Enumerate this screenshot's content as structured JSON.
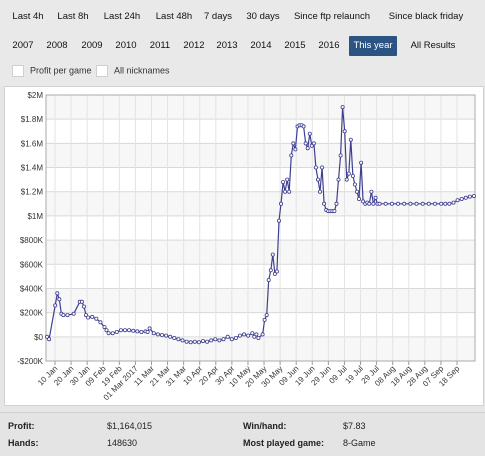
{
  "filters": {
    "row1": [
      "Last 4h",
      "Last 8h",
      "Last 24h",
      "Last 48h",
      "7 days",
      "30 days",
      "Since ftp relaunch",
      "Since black friday"
    ],
    "row2": [
      "2007",
      "2008",
      "2009",
      "2010",
      "2011",
      "2012",
      "2013",
      "2014",
      "2015",
      "2016",
      "This year",
      "All Results"
    ],
    "active": "This year"
  },
  "options": {
    "profit_per_game": "Profit per game",
    "all_nicknames": "All nicknames"
  },
  "colors": {
    "accent": "#2c5483",
    "line": "#3f3f8f"
  },
  "chart_data": {
    "type": "line",
    "title": "",
    "xlabel": "",
    "ylabel": "",
    "y_ticks": [
      "$2M",
      "$1.8M",
      "$1.6M",
      "$1.4M",
      "$1.2M",
      "$1M",
      "$800K",
      "$600K",
      "$400K",
      "$200K",
      "$0",
      "-$200K"
    ],
    "x_ticks": [
      "10 Jan",
      "20 Jan",
      "30 Jan",
      "09 Feb",
      "19 Feb",
      "01 Mar 2017",
      "11 Mar",
      "21 Mar",
      "31 Mar",
      "10 Apr",
      "20 Apr",
      "30 Apr",
      "10 May",
      "20 May",
      "30 May",
      "09 Jun",
      "19 Jun",
      "29 Jun",
      "09 Jul",
      "19 Jul",
      "29 Jul",
      "08 Aug",
      "18 Aug",
      "28 Aug",
      "07 Sep",
      "18 Sep"
    ],
    "ylim": [
      -200000,
      2000000
    ],
    "grid": true,
    "series": [
      {
        "name": "",
        "points": [
          [
            0,
            0
          ],
          [
            1,
            -20000
          ],
          [
            4,
            260000
          ],
          [
            5,
            360000
          ],
          [
            6,
            310000
          ],
          [
            7,
            190000
          ],
          [
            8,
            180000
          ],
          [
            10,
            180000
          ],
          [
            13,
            190000
          ],
          [
            16,
            290000
          ],
          [
            17,
            290000
          ],
          [
            18,
            250000
          ],
          [
            19,
            180000
          ],
          [
            20,
            160000
          ],
          [
            22,
            165000
          ],
          [
            24,
            150000
          ],
          [
            26,
            120000
          ],
          [
            28,
            80000
          ],
          [
            29,
            55000
          ],
          [
            30,
            30000
          ],
          [
            32,
            30000
          ],
          [
            34,
            40000
          ],
          [
            36,
            55000
          ],
          [
            38,
            55000
          ],
          [
            40,
            55000
          ],
          [
            42,
            50000
          ],
          [
            44,
            45000
          ],
          [
            46,
            40000
          ],
          [
            48,
            45000
          ],
          [
            49,
            40000
          ],
          [
            50,
            70000
          ],
          [
            52,
            30000
          ],
          [
            54,
            20000
          ],
          [
            56,
            15000
          ],
          [
            58,
            10000
          ],
          [
            60,
            0
          ],
          [
            62,
            -10000
          ],
          [
            64,
            -20000
          ],
          [
            66,
            -30000
          ],
          [
            68,
            -40000
          ],
          [
            70,
            -45000
          ],
          [
            72,
            -40000
          ],
          [
            74,
            -45000
          ],
          [
            76,
            -35000
          ],
          [
            78,
            -40000
          ],
          [
            80,
            -30000
          ],
          [
            82,
            -20000
          ],
          [
            84,
            -30000
          ],
          [
            86,
            -20000
          ],
          [
            88,
            0
          ],
          [
            90,
            -20000
          ],
          [
            92,
            -10000
          ],
          [
            94,
            10000
          ],
          [
            96,
            20000
          ],
          [
            98,
            10000
          ],
          [
            100,
            30000
          ],
          [
            101,
            0
          ],
          [
            102,
            20000
          ],
          [
            103,
            -10000
          ],
          [
            105,
            20000
          ],
          [
            106,
            140000
          ],
          [
            107,
            180000
          ],
          [
            108,
            470000
          ],
          [
            109,
            550000
          ],
          [
            110,
            680000
          ],
          [
            111,
            520000
          ],
          [
            112,
            540000
          ],
          [
            113,
            960000
          ],
          [
            114,
            1100000
          ],
          [
            115,
            1280000
          ],
          [
            116,
            1200000
          ],
          [
            117,
            1300000
          ],
          [
            118,
            1200000
          ],
          [
            119,
            1500000
          ],
          [
            120,
            1600000
          ],
          [
            121,
            1550000
          ],
          [
            122,
            1740000
          ],
          [
            123,
            1750000
          ],
          [
            124,
            1750000
          ],
          [
            125,
            1740000
          ],
          [
            126,
            1600000
          ],
          [
            127,
            1560000
          ],
          [
            128,
            1680000
          ],
          [
            129,
            1580000
          ],
          [
            130,
            1600000
          ],
          [
            131,
            1400000
          ],
          [
            132,
            1300000
          ],
          [
            133,
            1200000
          ],
          [
            134,
            1400000
          ],
          [
            135,
            1100000
          ],
          [
            136,
            1050000
          ],
          [
            137,
            1040000
          ],
          [
            138,
            1040000
          ],
          [
            139,
            1040000
          ],
          [
            140,
            1040000
          ],
          [
            141,
            1100000
          ],
          [
            142,
            1300000
          ],
          [
            143,
            1500000
          ],
          [
            144,
            1900000
          ],
          [
            145,
            1700000
          ],
          [
            146,
            1300000
          ],
          [
            147,
            1350000
          ],
          [
            148,
            1630000
          ],
          [
            149,
            1330000
          ],
          [
            150,
            1260000
          ],
          [
            151,
            1200000
          ],
          [
            152,
            1140000
          ],
          [
            153,
            1440000
          ],
          [
            154,
            1120000
          ],
          [
            155,
            1100000
          ],
          [
            156,
            1110000
          ],
          [
            157,
            1100000
          ],
          [
            158,
            1200000
          ],
          [
            159,
            1100000
          ],
          [
            160,
            1150000
          ],
          [
            161,
            1100000
          ],
          [
            162,
            1100000
          ],
          [
            165,
            1100000
          ],
          [
            168,
            1100000
          ],
          [
            171,
            1100000
          ],
          [
            174,
            1100000
          ],
          [
            177,
            1100000
          ],
          [
            180,
            1100000
          ],
          [
            183,
            1100000
          ],
          [
            186,
            1100000
          ],
          [
            189,
            1100000
          ],
          [
            192,
            1100000
          ],
          [
            194,
            1100000
          ],
          [
            196,
            1100000
          ],
          [
            198,
            1110000
          ],
          [
            200,
            1130000
          ],
          [
            202,
            1140000
          ],
          [
            204,
            1150000
          ],
          [
            206,
            1160000
          ],
          [
            208,
            1164015
          ]
        ]
      }
    ]
  },
  "stats": {
    "profit_label": "Profit:",
    "profit_value": "$1,164,015",
    "hands_label": "Hands:",
    "hands_value": "148630",
    "winhand_label": "Win/hand:",
    "winhand_value": "$7.83",
    "mostplayed_label": "Most played game:",
    "mostplayed_value": "8-Game"
  }
}
